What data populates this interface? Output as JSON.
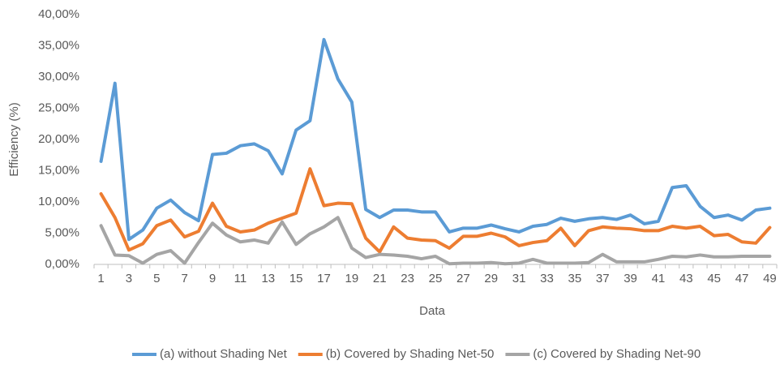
{
  "chart_data": {
    "type": "line",
    "x_label": "Data",
    "y_label": "Efficiency (%)",
    "categories": [
      "1",
      null,
      "3",
      null,
      "5",
      null,
      "7",
      null,
      "9",
      null,
      "11",
      null,
      "13",
      null,
      "15",
      null,
      "17",
      null,
      "19",
      null,
      "21",
      null,
      "23",
      null,
      "25",
      null,
      "27",
      null,
      "29",
      null,
      "31",
      null,
      "33",
      null,
      "35",
      null,
      "37",
      null,
      "39",
      null,
      "41",
      null,
      "43",
      null,
      "45",
      null,
      "47",
      null,
      "49"
    ],
    "series": [
      {
        "name": "(a) without Shading Net",
        "color": "#5b9bd5",
        "values": [
          16.5,
          29,
          4,
          5.5,
          9,
          10.3,
          8.3,
          7,
          17.6,
          17.8,
          19,
          19.3,
          18.2,
          14.5,
          21.5,
          23,
          36,
          29.7,
          26,
          8.8,
          7.5,
          8.7,
          8.7,
          8.4,
          8.4,
          5.2,
          5.8,
          5.8,
          6.3,
          5.7,
          5.2,
          6.1,
          6.4,
          7.4,
          6.9,
          7.3,
          7.5,
          7.2,
          7.9,
          6.5,
          6.9,
          12.3,
          12.6,
          9.3,
          7.5,
          7.9,
          7.1,
          8.7,
          9
        ]
      },
      {
        "name": "(b) Covered by Shading Net-50",
        "color": "#ed7d31",
        "values": [
          11.3,
          7.5,
          2.3,
          3.3,
          6.2,
          7.1,
          4.4,
          5.3,
          9.8,
          6.1,
          5.2,
          5.5,
          6.6,
          7.4,
          8.2,
          15.3,
          9.4,
          9.8,
          9.7,
          4.2,
          2,
          6,
          4.2,
          3.9,
          3.8,
          2.6,
          4.5,
          4.5,
          5,
          4.4,
          3,
          3.5,
          3.8,
          5.8,
          3,
          5.4,
          6,
          5.8,
          5.7,
          5.4,
          5.4,
          6.1,
          5.8,
          6.1,
          4.6,
          4.8,
          3.6,
          3.4,
          5.9
        ]
      },
      {
        "name": "(c) Covered by Shading Net-90",
        "color": "#a5a5a5",
        "values": [
          6.2,
          1.5,
          1.4,
          0.2,
          1.6,
          2.2,
          0.2,
          3.5,
          6.6,
          4.7,
          3.6,
          3.9,
          3.4,
          6.8,
          3.2,
          4.9,
          6,
          7.5,
          2.6,
          1.1,
          1.6,
          1.5,
          1.3,
          0.9,
          1.3,
          0.1,
          0.2,
          0.2,
          0.3,
          0.1,
          0.2,
          0.8,
          0.2,
          0.2,
          0.2,
          0.3,
          1.6,
          0.4,
          0.4,
          0.4,
          0.8,
          1.3,
          1.2,
          1.5,
          1.2,
          1.2,
          1.3,
          1.3,
          1.3
        ]
      }
    ],
    "ylim": [
      0,
      40
    ],
    "yticks": [
      {
        "value": 0,
        "label": "0,00%"
      },
      {
        "value": 5,
        "label": "5,00%"
      },
      {
        "value": 10,
        "label": "10,00%"
      },
      {
        "value": 15,
        "label": "15,00%"
      },
      {
        "value": 20,
        "label": "20,00%"
      },
      {
        "value": 25,
        "label": "25,00%"
      },
      {
        "value": 30,
        "label": "30,00%"
      },
      {
        "value": 35,
        "label": "35,00%"
      },
      {
        "value": 40,
        "label": "40,00%"
      }
    ],
    "grid": false,
    "legend": "bottom"
  }
}
